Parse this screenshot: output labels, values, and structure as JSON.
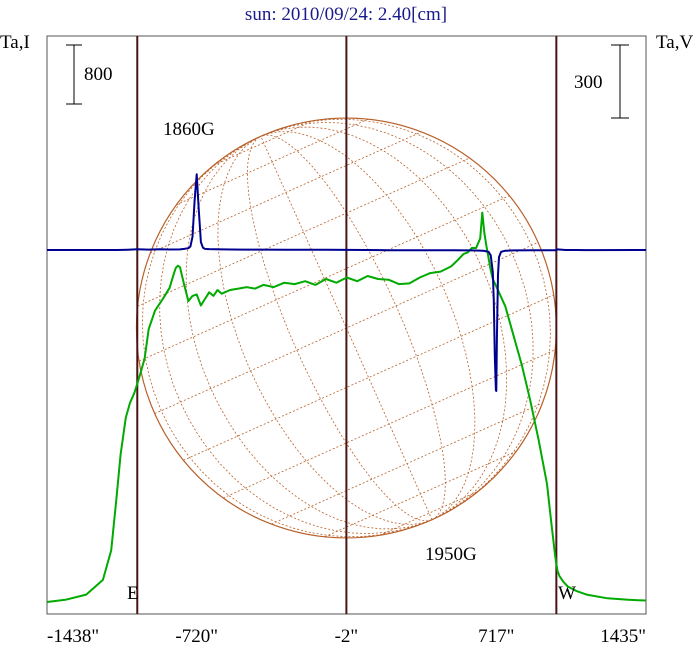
{
  "title": "sun: 2010/09/24: 2.40[cm]",
  "left_axis_label": "Ta,I",
  "right_axis_label": "Ta,V",
  "left_scale_bar_label": "800",
  "right_scale_bar_label": "300",
  "limb_labels": {
    "east": "E",
    "west": "W"
  },
  "annotations": [
    {
      "text": "1860G",
      "x_arcsec": -720
    },
    {
      "text": "1950G",
      "x_arcsec": 717
    }
  ],
  "colors": {
    "title": "#1a1a8c",
    "intensity": "#00aa00",
    "polarization": "#000090",
    "grid_lines": "#4a1414",
    "globe": "#b8612a"
  },
  "chart_data": {
    "type": "line",
    "title": "sun: 2010/09/24: 2.40[cm]",
    "xlabel": "",
    "ylabel": "Ta,I",
    "y2label": "Ta,V",
    "xlim": [
      -1438,
      1435
    ],
    "x_ticks": [
      "-1438\"",
      "-720\"",
      "-2\"",
      "717\"",
      "1435\""
    ],
    "x_tick_values": [
      -1438,
      -720,
      -2,
      717,
      1435
    ],
    "vertical_lines_arcsec": [
      -1005,
      -2,
      1005
    ],
    "grid": false,
    "series": [
      {
        "axis": "left",
        "x": [
          -1438,
          -1350,
          -1250,
          -1170,
          -1130,
          -1105,
          -1085,
          -1060,
          -1040,
          -1020,
          -1005,
          -990,
          -970,
          -950,
          -920,
          -880,
          -850,
          -830,
          -820,
          -810,
          -800,
          -780,
          -760,
          -740,
          -720,
          -700,
          -680,
          -660,
          -640,
          -620,
          -600,
          -560,
          -520,
          -480,
          -440,
          -400,
          -350,
          -300,
          -250,
          -200,
          -150,
          -100,
          -50,
          0,
          50,
          100,
          150,
          200,
          250,
          300,
          350,
          400,
          450,
          500,
          530,
          560,
          580,
          600,
          620,
          640,
          650,
          660,
          670,
          680,
          690,
          700,
          720,
          760,
          800,
          840,
          880,
          920,
          960,
          980,
          1000,
          1010,
          1020,
          1040,
          1060,
          1100,
          1150,
          1250,
          1350,
          1435
        ],
        "y": [
          0,
          30,
          100,
          300,
          700,
          1400,
          2000,
          2500,
          2700,
          2830,
          2960,
          3100,
          3300,
          3700,
          3950,
          4120,
          4260,
          4450,
          4530,
          4560,
          4540,
          4300,
          4080,
          4150,
          4170,
          4020,
          4110,
          4200,
          4150,
          4230,
          4180,
          4230,
          4250,
          4270,
          4250,
          4300,
          4270,
          4330,
          4310,
          4350,
          4300,
          4380,
          4330,
          4400,
          4350,
          4420,
          4380,
          4370,
          4310,
          4320,
          4400,
          4460,
          4480,
          4550,
          4630,
          4720,
          4740,
          4800,
          4800,
          4930,
          5280,
          5000,
          4820,
          4660,
          4500,
          4380,
          4260,
          4010,
          3610,
          3210,
          2730,
          2200,
          1600,
          1100,
          610,
          430,
          350,
          270,
          210,
          150,
          100,
          50,
          30,
          20
        ]
      },
      {
        "axis": "right",
        "x": [
          -1438,
          -1100,
          -1050,
          -1005,
          -950,
          -900,
          -850,
          -800,
          -780,
          -760,
          -750,
          -740,
          -730,
          -720,
          -710,
          -700,
          -690,
          -680,
          -660,
          -600,
          -500,
          -400,
          -300,
          -200,
          -100,
          -2,
          100,
          200,
          300,
          400,
          500,
          600,
          640,
          660,
          680,
          690,
          700,
          705,
          710,
          715,
          717,
          720,
          725,
          730,
          740,
          760,
          800,
          900,
          1000,
          1010,
          1050,
          1100,
          1150,
          1435
        ],
        "y": [
          0,
          0,
          3,
          8,
          5,
          9,
          6,
          7,
          12,
          20,
          40,
          150,
          560,
          860,
          450,
          90,
          25,
          12,
          10,
          7,
          5,
          4,
          3,
          2,
          2,
          1,
          0,
          -2,
          -3,
          -3,
          -2,
          -5,
          -7,
          -10,
          -22,
          -60,
          -250,
          -580,
          -1200,
          -1590,
          -1600,
          -1000,
          -280,
          -80,
          -20,
          -8,
          -4,
          -2,
          -2,
          7,
          0,
          0,
          -1,
          0
        ]
      }
    ]
  }
}
